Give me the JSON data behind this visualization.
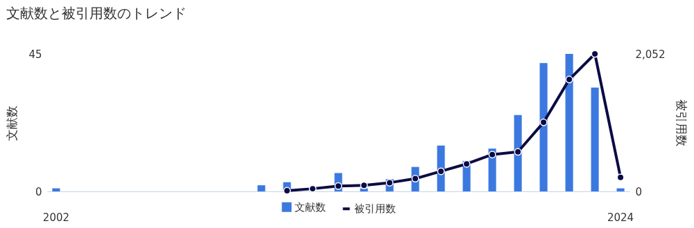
{
  "chart_data": {
    "type": "bar",
    "title": "文献数と被引用数のトレンド",
    "ylabel": "文献数",
    "y2label": "被引用数",
    "categories": [
      "2002",
      null,
      null,
      null,
      null,
      null,
      null,
      null,
      null,
      null,
      null,
      null,
      null,
      null,
      null,
      null,
      null,
      null,
      null,
      null,
      null,
      null,
      "2024"
    ],
    "ylim": [
      0,
      45
    ],
    "yticks": [
      0,
      45
    ],
    "y2lim": [
      0,
      2052
    ],
    "y2ticks": [
      0,
      {
        "value": 2052,
        "label": "2,052"
      }
    ],
    "series": [
      {
        "name": "文献数",
        "color": "#3b78e0",
        "values": [
          1,
          null,
          null,
          null,
          null,
          null,
          null,
          null,
          2,
          3,
          null,
          6,
          1,
          4,
          8,
          15,
          10,
          14,
          25,
          42,
          45,
          34,
          1
        ]
      },
      {
        "name": "被引用数",
        "type": "line",
        "axis": "y2",
        "color": "#0b0b45",
        "marker": "circle",
        "values": [
          null,
          null,
          null,
          null,
          null,
          null,
          null,
          null,
          null,
          10,
          40,
          80,
          90,
          130,
          190,
          300,
          410,
          550,
          590,
          1030,
          1670,
          2052,
          210
        ]
      }
    ],
    "legend": "bottom",
    "grid": false
  }
}
